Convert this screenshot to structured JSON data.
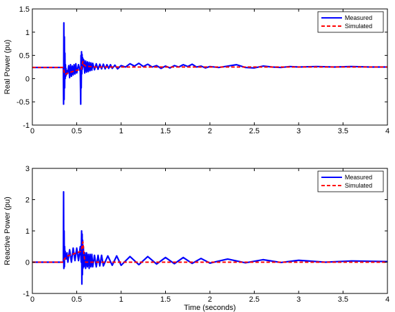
{
  "chart_data": [
    {
      "type": "line",
      "title": "",
      "xlabel": "",
      "ylabel": "Real Power (pu)",
      "xlim": [
        0,
        4
      ],
      "ylim": [
        -1,
        1.5
      ],
      "xticks": [
        "0",
        "0.5",
        "1",
        "1.5",
        "2",
        "2.5",
        "3",
        "3.5",
        "4"
      ],
      "yticks": [
        "-1",
        "-0.5",
        "0",
        "0.5",
        "1",
        "1.5"
      ],
      "grid": false,
      "legend_position": "top-right",
      "series": [
        {
          "name": "Measured",
          "color": "#0000ff",
          "style": "solid",
          "x": [
            0,
            0.349,
            0.352,
            0.355,
            0.358,
            0.361,
            0.364,
            0.367,
            0.37,
            0.373,
            0.376,
            0.379,
            0.382,
            0.385,
            0.39,
            0.4,
            0.41,
            0.42,
            0.43,
            0.44,
            0.45,
            0.46,
            0.47,
            0.48,
            0.49,
            0.5,
            0.52,
            0.54,
            0.545,
            0.548,
            0.551,
            0.554,
            0.557,
            0.56,
            0.563,
            0.566,
            0.569,
            0.572,
            0.575,
            0.58,
            0.59,
            0.6,
            0.61,
            0.62,
            0.63,
            0.64,
            0.65,
            0.66,
            0.67,
            0.68,
            0.7,
            0.72,
            0.74,
            0.76,
            0.78,
            0.8,
            0.82,
            0.84,
            0.86,
            0.88,
            0.9,
            0.93,
            0.96,
            1.0,
            1.05,
            1.1,
            1.15,
            1.2,
            1.25,
            1.3,
            1.35,
            1.4,
            1.45,
            1.5,
            1.55,
            1.6,
            1.65,
            1.7,
            1.75,
            1.8,
            1.85,
            1.9,
            1.95,
            2.0,
            2.1,
            2.2,
            2.3,
            2.4,
            2.5,
            2.6,
            2.7,
            2.8,
            2.9,
            3.0,
            3.2,
            3.4,
            3.6,
            3.8,
            4.0
          ],
          "y": [
            0.24,
            0.24,
            -0.55,
            1.2,
            -0.45,
            0.9,
            -0.2,
            0.55,
            0.0,
            0.3,
            0.05,
            0.22,
            0.08,
            0.18,
            0.1,
            0.15,
            0.28,
            0.02,
            0.3,
            0.05,
            0.27,
            0.08,
            0.3,
            0.1,
            0.32,
            0.12,
            0.3,
            0.15,
            -0.55,
            0.5,
            -0.2,
            0.58,
            0.1,
            0.52,
            0.2,
            0.45,
            0.25,
            0.42,
            0.28,
            0.4,
            0.12,
            0.38,
            0.14,
            0.36,
            0.15,
            0.35,
            0.17,
            0.34,
            0.18,
            0.33,
            0.19,
            0.32,
            0.2,
            0.31,
            0.21,
            0.31,
            0.21,
            0.3,
            0.22,
            0.3,
            0.22,
            0.29,
            0.21,
            0.28,
            0.25,
            0.32,
            0.27,
            0.33,
            0.26,
            0.31,
            0.25,
            0.28,
            0.22,
            0.27,
            0.23,
            0.28,
            0.25,
            0.3,
            0.26,
            0.31,
            0.25,
            0.27,
            0.23,
            0.26,
            0.24,
            0.27,
            0.3,
            0.24,
            0.23,
            0.27,
            0.25,
            0.24,
            0.26,
            0.25,
            0.26,
            0.25,
            0.26,
            0.25,
            0.25
          ]
        },
        {
          "name": "Simulated",
          "color": "#ff0000",
          "style": "dashed",
          "x": [
            0,
            0.35,
            0.36,
            0.38,
            0.4,
            0.45,
            0.5,
            0.55,
            0.57,
            0.58,
            0.6,
            0.65,
            0.7,
            1.0,
            1.5,
            2.0,
            2.5,
            3.0,
            3.5,
            4.0
          ],
          "y": [
            0.24,
            0.24,
            0.1,
            0.1,
            0.12,
            0.15,
            0.18,
            0.2,
            0.37,
            0.3,
            0.27,
            0.26,
            0.25,
            0.25,
            0.25,
            0.25,
            0.25,
            0.25,
            0.25,
            0.25
          ]
        }
      ]
    },
    {
      "type": "line",
      "title": "",
      "xlabel": "Time (seconds)",
      "ylabel": "Reactive Power (pu)",
      "xlim": [
        0,
        4
      ],
      "ylim": [
        -1,
        3
      ],
      "xticks": [
        "0",
        "0.5",
        "1",
        "1.5",
        "2",
        "2.5",
        "3",
        "3.5",
        "4"
      ],
      "yticks": [
        "-1",
        "0",
        "1",
        "2",
        "3"
      ],
      "grid": false,
      "legend_position": "top-right",
      "series": [
        {
          "name": "Measured",
          "color": "#0000ff",
          "style": "solid",
          "x": [
            0,
            0.349,
            0.352,
            0.355,
            0.358,
            0.361,
            0.364,
            0.367,
            0.37,
            0.373,
            0.376,
            0.38,
            0.39,
            0.4,
            0.42,
            0.44,
            0.46,
            0.48,
            0.5,
            0.52,
            0.54,
            0.55,
            0.555,
            0.558,
            0.561,
            0.564,
            0.567,
            0.57,
            0.575,
            0.58,
            0.59,
            0.6,
            0.61,
            0.62,
            0.63,
            0.64,
            0.65,
            0.66,
            0.67,
            0.68,
            0.7,
            0.72,
            0.74,
            0.76,
            0.78,
            0.8,
            0.85,
            0.9,
            0.95,
            1.0,
            1.1,
            1.2,
            1.3,
            1.4,
            1.5,
            1.6,
            1.7,
            1.8,
            1.9,
            2.0,
            2.2,
            2.4,
            2.6,
            2.8,
            3.0,
            3.3,
            3.6,
            4.0
          ],
          "y": [
            0.0,
            0.0,
            2.25,
            -0.2,
            1.0,
            -0.15,
            0.5,
            0.1,
            0.35,
            0.15,
            0.25,
            0.1,
            0.3,
            0.0,
            0.4,
            0.0,
            0.45,
            0.05,
            0.45,
            0.05,
            0.5,
            0.0,
            1.0,
            -0.7,
            0.9,
            -0.4,
            0.7,
            -0.2,
            0.5,
            -0.15,
            0.3,
            -0.2,
            0.3,
            -0.15,
            0.25,
            -0.2,
            0.25,
            -0.15,
            0.25,
            -0.15,
            0.22,
            -0.15,
            0.22,
            -0.12,
            0.22,
            -0.12,
            0.2,
            -0.1,
            0.2,
            -0.1,
            0.18,
            -0.08,
            0.18,
            -0.06,
            0.15,
            -0.05,
            0.15,
            -0.04,
            0.12,
            -0.03,
            0.1,
            -0.02,
            0.08,
            -0.01,
            0.06,
            0.0,
            0.04,
            0.02
          ]
        },
        {
          "name": "Simulated",
          "color": "#ff0000",
          "style": "dashed",
          "x": [
            0,
            0.35,
            0.36,
            0.38,
            0.4,
            0.45,
            0.5,
            0.55,
            0.57,
            0.58,
            0.59,
            0.6,
            0.65,
            1.0,
            1.5,
            2.0,
            2.5,
            3.0,
            3.5,
            4.0
          ],
          "y": [
            0.0,
            0.0,
            0.1,
            0.15,
            0.2,
            0.25,
            0.3,
            0.35,
            0.65,
            0.3,
            0.05,
            0.0,
            0.0,
            0.0,
            0.0,
            0.0,
            0.0,
            0.0,
            0.0,
            0.0
          ]
        }
      ]
    }
  ]
}
